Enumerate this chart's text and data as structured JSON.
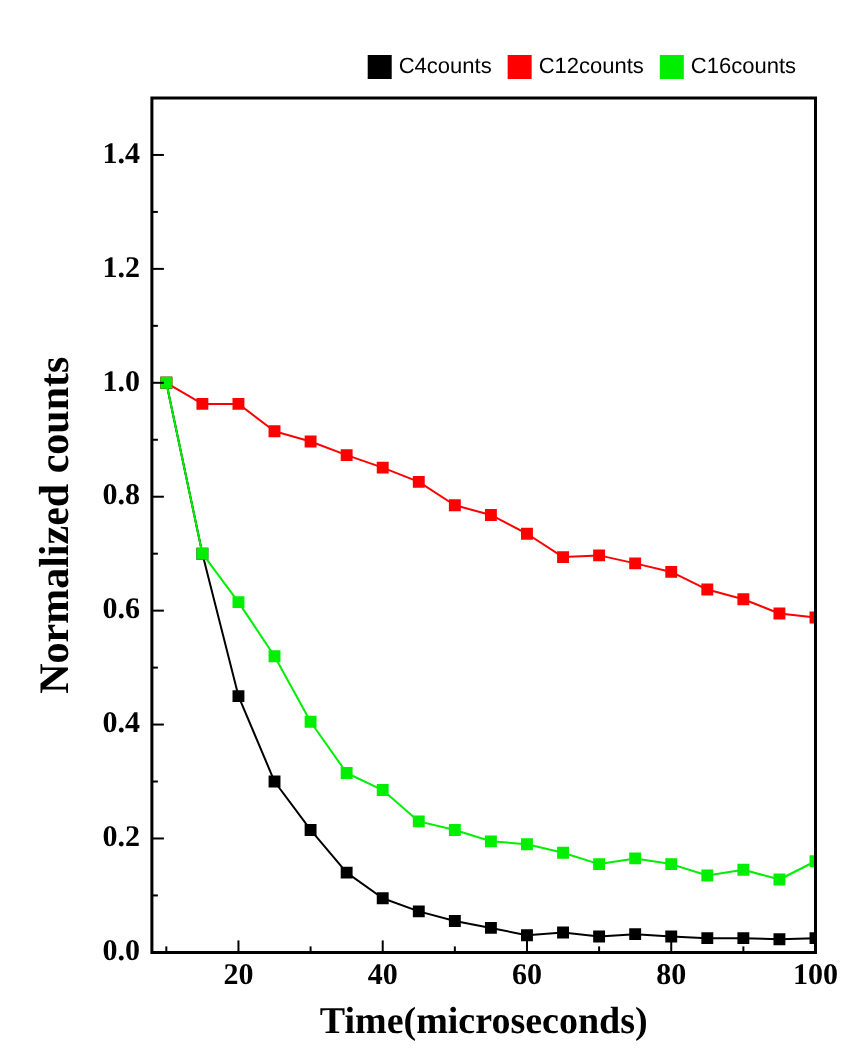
{
  "chart_data": {
    "type": "line",
    "xlabel": "Time(microseconds)",
    "ylabel": "Normalized counts",
    "x": [
      10,
      15,
      20,
      25,
      30,
      35,
      40,
      45,
      50,
      55,
      60,
      65,
      70,
      75,
      80,
      85,
      90,
      95,
      100
    ],
    "series": [
      {
        "name": "C4counts",
        "color": "#000000",
        "values": [
          1.0,
          0.7,
          0.45,
          0.3,
          0.215,
          0.14,
          0.095,
          0.072,
          0.055,
          0.043,
          0.03,
          0.035,
          0.028,
          0.032,
          0.028,
          0.025,
          0.025,
          0.023,
          0.025
        ]
      },
      {
        "name": "C12counts",
        "color": "#ff0000",
        "values": [
          1.0,
          0.963,
          0.963,
          0.915,
          0.897,
          0.873,
          0.851,
          0.826,
          0.785,
          0.768,
          0.735,
          0.694,
          0.697,
          0.683,
          0.668,
          0.637,
          0.62,
          0.595,
          0.588
        ]
      },
      {
        "name": "C16counts",
        "color": "#00ee00",
        "values": [
          1.0,
          0.7,
          0.615,
          0.52,
          0.405,
          0.315,
          0.285,
          0.23,
          0.215,
          0.195,
          0.19,
          0.175,
          0.155,
          0.165,
          0.155,
          0.135,
          0.145,
          0.128,
          0.16
        ]
      }
    ],
    "xlim": [
      8,
      100
    ],
    "xticks": [
      20,
      40,
      60,
      80,
      100
    ],
    "ylim": [
      0,
      1.5
    ],
    "yticks": [
      {
        "value": 0,
        "label": "0.0"
      },
      {
        "value": 0.2,
        "label": "0.2"
      },
      {
        "value": 0.4,
        "label": "0.4"
      },
      {
        "value": 0.6,
        "label": "0.6"
      },
      {
        "value": 0.8,
        "label": "0.8"
      },
      {
        "value": 1.0,
        "label": "1.0"
      },
      {
        "value": 1.2,
        "label": "1.2"
      },
      {
        "value": 1.4,
        "label": "1.4"
      }
    ],
    "grid": false,
    "legend": "top right",
    "marker": "square",
    "line_style": "solid"
  }
}
